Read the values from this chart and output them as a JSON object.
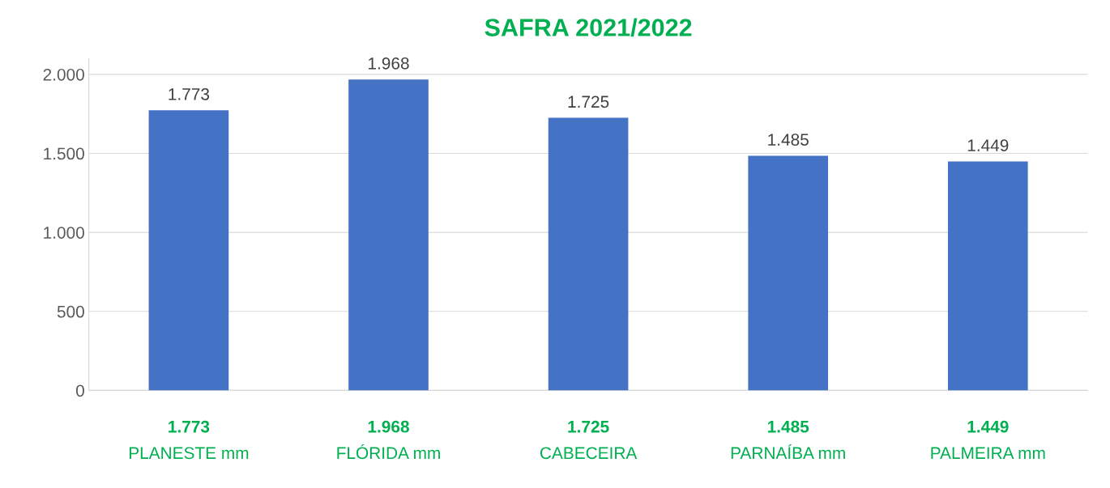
{
  "chart_data": {
    "type": "bar",
    "title": "SAFRA 2021/2022",
    "categories": [
      "PLANESTE mm",
      "FLÓRIDA mm",
      "CABECEIRA",
      "PARNAÍBA mm",
      "PALMEIRA mm"
    ],
    "values": [
      1773,
      1968,
      1725,
      1485,
      1449
    ],
    "value_labels": [
      "1.773",
      "1.968",
      "1.725",
      "1.485",
      "1.449"
    ],
    "color": "#4472c4",
    "ylim": [
      0,
      2100
    ],
    "yticks": [
      {
        "value": 0,
        "label": "0"
      },
      {
        "value": 500,
        "label": "500"
      },
      {
        "value": 1000,
        "label": "1.000"
      },
      {
        "value": 1500,
        "label": "1.500"
      },
      {
        "value": 2000,
        "label": "2.000"
      }
    ],
    "grid": "y"
  }
}
